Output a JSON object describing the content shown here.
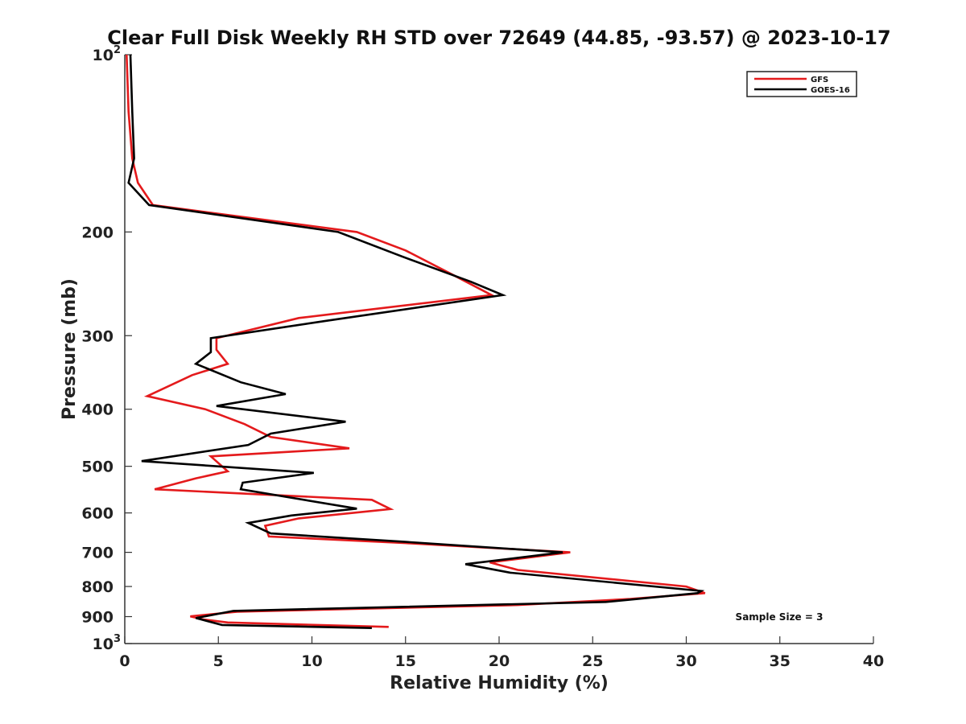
{
  "chart_data": {
    "type": "line",
    "title": "Clear Full Disk Weekly RH STD over 72649 (44.85, -93.57) @ 2023-10-17",
    "xlabel": "Relative Humidity (%)",
    "ylabel": "Pressure (mb)",
    "xlim": [
      0,
      40
    ],
    "ylim": [
      100,
      1000
    ],
    "y_scale": "log",
    "y_reversed": true,
    "grid": false,
    "legend_position": "top-right",
    "x_ticks": [
      {
        "value": 0,
        "label": "0"
      },
      {
        "value": 5,
        "label": "5"
      },
      {
        "value": 10,
        "label": "10"
      },
      {
        "value": 15,
        "label": "15"
      },
      {
        "value": 20,
        "label": "20"
      },
      {
        "value": 25,
        "label": "25"
      },
      {
        "value": 30,
        "label": "30"
      },
      {
        "value": 35,
        "label": "35"
      },
      {
        "value": 40,
        "label": "40"
      }
    ],
    "y_ticks": [
      {
        "value": 100,
        "label": "10",
        "sup": "2"
      },
      {
        "value": 200,
        "label": "200"
      },
      {
        "value": 300,
        "label": "300"
      },
      {
        "value": 400,
        "label": "400"
      },
      {
        "value": 500,
        "label": "500"
      },
      {
        "value": 600,
        "label": "600"
      },
      {
        "value": 700,
        "label": "700"
      },
      {
        "value": 800,
        "label": "800"
      },
      {
        "value": 900,
        "label": "900"
      },
      {
        "value": 1000,
        "label": "10",
        "sup": "3"
      }
    ],
    "annotation": "Sample Size = 3",
    "series": [
      {
        "name": "GFS",
        "color": "#e41a1c",
        "points": [
          [
            0.1,
            100
          ],
          [
            0.2,
            125
          ],
          [
            0.4,
            150
          ],
          [
            0.7,
            165
          ],
          [
            1.5,
            180
          ],
          [
            12.4,
            200
          ],
          [
            15.0,
            215
          ],
          [
            17.7,
            238
          ],
          [
            19.6,
            256
          ],
          [
            9.3,
            280
          ],
          [
            4.9,
            303
          ],
          [
            4.9,
            317
          ],
          [
            5.5,
            335
          ],
          [
            3.6,
            350
          ],
          [
            1.2,
            380
          ],
          [
            4.3,
            400
          ],
          [
            6.4,
            424
          ],
          [
            7.8,
            446
          ],
          [
            12.0,
            466
          ],
          [
            4.6,
            481
          ],
          [
            5.5,
            510
          ],
          [
            3.8,
            524
          ],
          [
            1.6,
            547
          ],
          [
            13.2,
            570
          ],
          [
            14.2,
            591
          ],
          [
            9.3,
            613
          ],
          [
            7.5,
            631
          ],
          [
            7.7,
            658
          ],
          [
            15.0,
            675
          ],
          [
            23.8,
            700
          ],
          [
            19.5,
            728
          ],
          [
            21.0,
            750
          ],
          [
            30.0,
            800
          ],
          [
            31.0,
            821
          ],
          [
            27.0,
            840
          ],
          [
            21.0,
            860
          ],
          [
            6.0,
            883
          ],
          [
            3.5,
            899
          ],
          [
            4.2,
            910
          ],
          [
            5.5,
            921
          ],
          [
            14.1,
            937
          ]
        ]
      },
      {
        "name": "GOES-16",
        "color": "#000000",
        "points": [
          [
            0.3,
            100
          ],
          [
            0.4,
            125
          ],
          [
            0.5,
            150
          ],
          [
            0.2,
            165
          ],
          [
            1.3,
            180
          ],
          [
            11.4,
            200
          ],
          [
            14.8,
            220
          ],
          [
            18.5,
            243
          ],
          [
            20.2,
            256
          ],
          [
            10.8,
            283
          ],
          [
            4.6,
            303
          ],
          [
            4.6,
            320
          ],
          [
            3.8,
            335
          ],
          [
            6.2,
            360
          ],
          [
            8.6,
            377
          ],
          [
            4.9,
            395
          ],
          [
            11.8,
            420
          ],
          [
            7.8,
            440
          ],
          [
            6.6,
            460
          ],
          [
            0.9,
            490
          ],
          [
            10.1,
            513
          ],
          [
            6.3,
            533
          ],
          [
            6.2,
            547
          ],
          [
            12.4,
            590
          ],
          [
            8.9,
            606
          ],
          [
            6.6,
            624
          ],
          [
            7.8,
            650
          ],
          [
            15.0,
            672
          ],
          [
            23.4,
            700
          ],
          [
            18.2,
            733
          ],
          [
            20.6,
            758
          ],
          [
            30.8,
            814
          ],
          [
            30.6,
            821
          ],
          [
            25.7,
            850
          ],
          [
            5.8,
            880
          ],
          [
            3.8,
            905
          ],
          [
            5.2,
            930
          ],
          [
            13.2,
            941
          ]
        ]
      }
    ]
  }
}
